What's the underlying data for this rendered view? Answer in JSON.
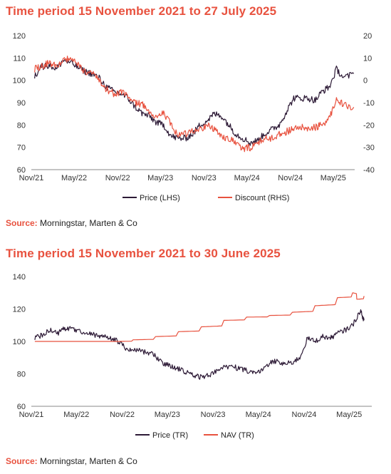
{
  "chart_data": [
    {
      "type": "line",
      "title": "Time period 15 November 2021 to 27 July 2025",
      "x_ticks": [
        "Nov/21",
        "May/22",
        "Nov/22",
        "May/23",
        "Nov/23",
        "May/24",
        "Nov/24",
        "May/25"
      ],
      "y_left": {
        "ylim": [
          60,
          120
        ],
        "ticks": [
          60,
          70,
          80,
          90,
          100,
          110,
          120
        ]
      },
      "y_right": {
        "ylim": [
          -40,
          20
        ],
        "ticks": [
          -40,
          -30,
          -20,
          -10,
          0,
          10,
          20
        ]
      },
      "legend_position": "bottom",
      "grid": false,
      "series": [
        {
          "name": "Price (LHS)",
          "axis": "left",
          "color": "#2d1a36",
          "x": [
            "2021-11-15",
            "2021-12-15",
            "2022-01-15",
            "2022-02-15",
            "2022-03-15",
            "2022-04-15",
            "2022-05-15",
            "2022-06-15",
            "2022-07-15",
            "2022-08-15",
            "2022-09-15",
            "2022-10-15",
            "2022-11-15",
            "2022-12-15",
            "2023-01-15",
            "2023-02-15",
            "2023-03-15",
            "2023-04-15",
            "2023-05-15",
            "2023-06-15",
            "2023-07-15",
            "2023-08-15",
            "2023-09-15",
            "2023-10-15",
            "2023-11-15",
            "2023-12-15",
            "2024-01-15",
            "2024-02-15",
            "2024-03-15",
            "2024-04-15",
            "2024-05-15",
            "2024-06-15",
            "2024-07-15",
            "2024-08-15",
            "2024-09-15",
            "2024-10-15",
            "2024-11-15",
            "2024-12-15",
            "2025-01-15",
            "2025-02-15",
            "2025-03-15",
            "2025-04-15",
            "2025-05-15",
            "2025-06-15",
            "2025-07-27"
          ],
          "values": [
            102,
            106,
            107,
            105,
            109,
            108,
            106,
            104,
            103,
            101,
            97,
            95,
            94,
            92,
            88,
            85,
            84,
            81,
            80,
            75,
            74,
            74,
            76,
            80,
            82,
            85,
            84,
            80,
            76,
            74,
            72,
            73,
            76,
            78,
            80,
            86,
            92,
            92,
            92,
            91,
            95,
            97,
            105,
            101,
            103
          ]
        },
        {
          "name": "Discount (RHS)",
          "axis": "right",
          "color": "#e8523f",
          "x": [
            "2021-11-15",
            "2021-12-15",
            "2022-01-15",
            "2022-02-15",
            "2022-03-15",
            "2022-04-15",
            "2022-05-15",
            "2022-06-15",
            "2022-07-15",
            "2022-08-15",
            "2022-09-15",
            "2022-10-15",
            "2022-11-15",
            "2022-12-15",
            "2023-01-15",
            "2023-02-15",
            "2023-03-15",
            "2023-04-15",
            "2023-05-15",
            "2023-06-15",
            "2023-07-15",
            "2023-08-15",
            "2023-09-15",
            "2023-10-15",
            "2023-11-15",
            "2023-12-15",
            "2024-01-15",
            "2024-02-15",
            "2024-03-15",
            "2024-04-15",
            "2024-05-15",
            "2024-06-15",
            "2024-07-15",
            "2024-08-15",
            "2024-09-15",
            "2024-10-15",
            "2024-11-15",
            "2024-12-15",
            "2025-01-15",
            "2025-02-15",
            "2025-03-15",
            "2025-04-15",
            "2025-05-15",
            "2025-06-15",
            "2025-07-27"
          ],
          "values": [
            5,
            6,
            8,
            6,
            9,
            10,
            7,
            4,
            3,
            0,
            -4,
            -6,
            -5,
            -7,
            -10,
            -11,
            -14,
            -16,
            -15,
            -20,
            -25,
            -24,
            -23,
            -22,
            -20,
            -22,
            -25,
            -26,
            -28,
            -31,
            -30,
            -28,
            -26,
            -26,
            -24,
            -23,
            -22,
            -21,
            -22,
            -21,
            -20,
            -17,
            -8,
            -11,
            -12
          ]
        }
      ]
    },
    {
      "type": "line",
      "title": "Time period 15 November 2021 to 30 June 2025",
      "x_ticks": [
        "Nov/21",
        "May/22",
        "Nov/22",
        "May/23",
        "Nov/23",
        "May/24",
        "Nov/24",
        "May/25"
      ],
      "y_left": {
        "ylim": [
          60,
          140
        ],
        "ticks": [
          60,
          80,
          100,
          120,
          140
        ]
      },
      "legend_position": "bottom",
      "grid": false,
      "series": [
        {
          "name": "Price (TR)",
          "color": "#2d1a36",
          "x": [
            "2021-11-15",
            "2021-12-15",
            "2022-01-15",
            "2022-02-15",
            "2022-03-15",
            "2022-04-15",
            "2022-05-15",
            "2022-06-15",
            "2022-07-15",
            "2022-08-15",
            "2022-09-15",
            "2022-10-15",
            "2022-11-15",
            "2022-12-15",
            "2023-01-15",
            "2023-02-15",
            "2023-03-15",
            "2023-04-15",
            "2023-05-15",
            "2023-06-15",
            "2023-07-15",
            "2023-08-15",
            "2023-09-15",
            "2023-10-15",
            "2023-11-15",
            "2023-12-15",
            "2024-01-15",
            "2024-02-15",
            "2024-03-15",
            "2024-04-15",
            "2024-05-15",
            "2024-06-15",
            "2024-07-15",
            "2024-08-15",
            "2024-09-15",
            "2024-10-15",
            "2024-11-15",
            "2024-12-15",
            "2025-01-15",
            "2025-02-15",
            "2025-03-15",
            "2025-04-15",
            "2025-05-15",
            "2025-06-15",
            "2025-06-30"
          ],
          "values": [
            102,
            104,
            107,
            105,
            108,
            108,
            106,
            105,
            104,
            103,
            102,
            100,
            96,
            95,
            94,
            93,
            91,
            86,
            85,
            83,
            81,
            79,
            78,
            79,
            82,
            84,
            85,
            83,
            82,
            80,
            82,
            87,
            88,
            86,
            87,
            90,
            102,
            100,
            103,
            102,
            105,
            107,
            110,
            119,
            113
          ]
        },
        {
          "name": "NAV (TR)",
          "color": "#e8523f",
          "x": [
            "2021-11-15",
            "2022-02-15",
            "2022-05-15",
            "2022-08-15",
            "2022-10-15",
            "2022-12-15",
            "2023-03-15",
            "2023-06-15",
            "2023-09-15",
            "2023-12-15",
            "2024-03-15",
            "2024-06-15",
            "2024-09-15",
            "2024-12-15",
            "2025-03-15",
            "2025-05-15",
            "2025-06-01",
            "2025-06-30"
          ],
          "values": [
            100,
            100,
            100,
            100,
            100,
            101,
            103,
            106,
            109,
            113,
            115,
            116,
            118,
            122,
            127,
            130,
            126,
            128
          ]
        }
      ]
    }
  ],
  "sources": [
    {
      "label": "Source:",
      "text": "Morningstar, Marten & Co"
    },
    {
      "label": "Source:",
      "text": "Morningstar, Marten & Co"
    }
  ]
}
